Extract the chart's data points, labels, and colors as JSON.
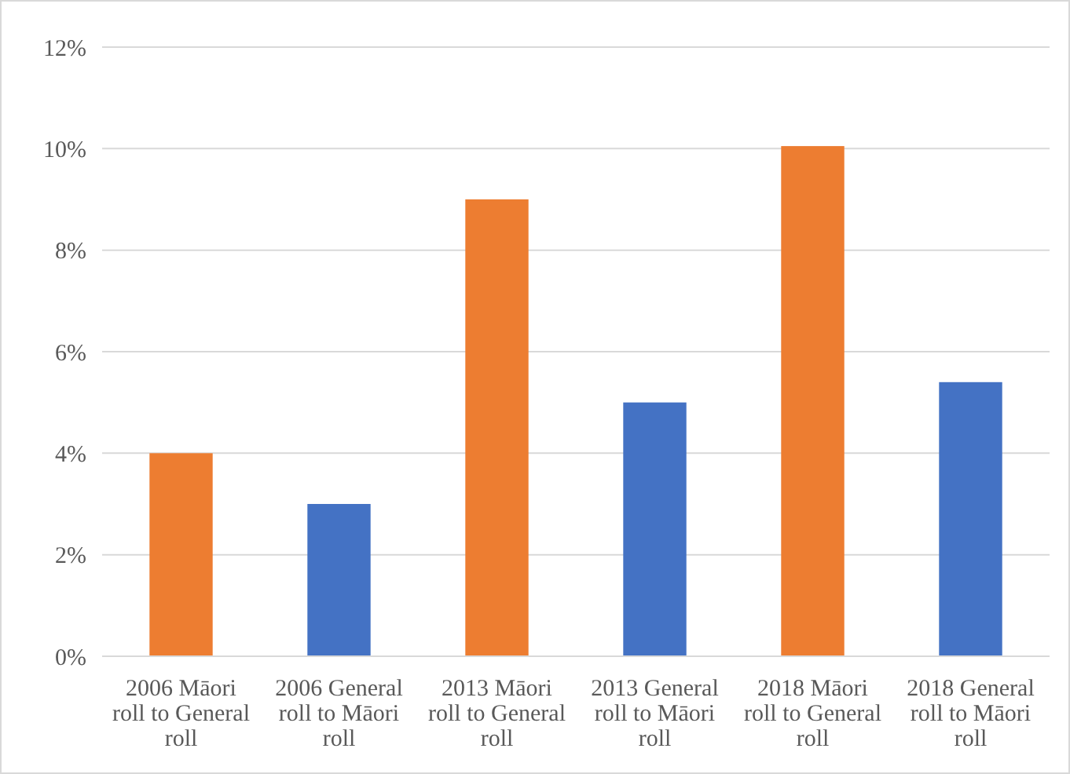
{
  "chart_data": {
    "type": "bar",
    "categories": [
      "2006 Māori roll to General roll",
      "2006 General roll to Māori roll",
      "2013 Māori roll to General roll",
      "2013 General roll to Māori roll",
      "2018 Māori roll to General roll",
      "2018 General roll to Māori roll"
    ],
    "values": [
      4,
      3,
      9,
      5,
      10.05,
      5.4
    ],
    "colors": [
      "#ed7d31",
      "#4472c4",
      "#ed7d31",
      "#4472c4",
      "#ed7d31",
      "#4472c4"
    ],
    "ylim": [
      0,
      12
    ],
    "yticks": [
      {
        "value": 0,
        "label": "0%"
      },
      {
        "value": 2,
        "label": "2%"
      },
      {
        "value": 4,
        "label": "4%"
      },
      {
        "value": 6,
        "label": "6%"
      },
      {
        "value": 8,
        "label": "8%"
      },
      {
        "value": 10,
        "label": "10%"
      },
      {
        "value": 12,
        "label": "12%"
      }
    ],
    "grid": "y"
  }
}
